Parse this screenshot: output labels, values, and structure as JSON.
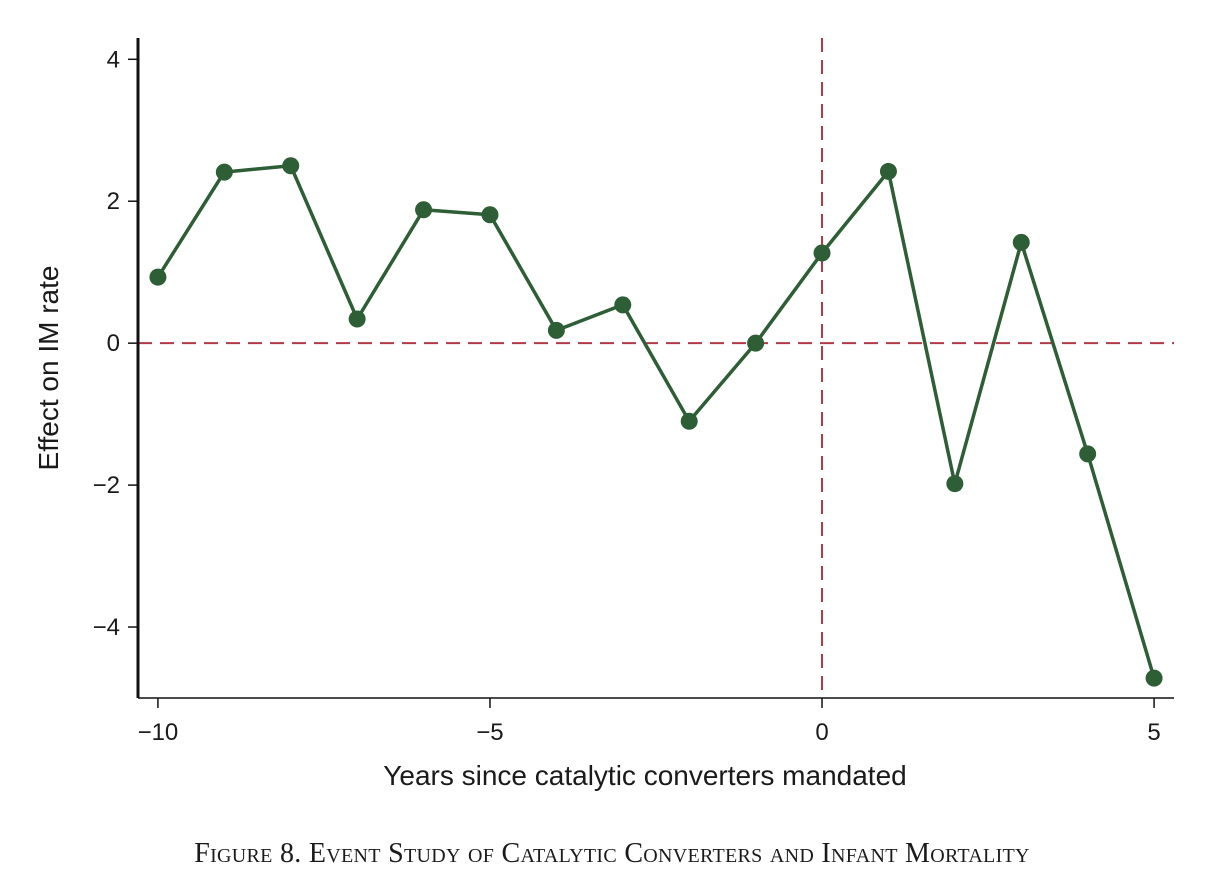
{
  "caption": "Figure 8. Event Study of Catalytic Converters and Infant Mortality",
  "chart_data": {
    "type": "line",
    "title": "",
    "xlabel": "Years since catalytic converters mandated",
    "ylabel": "Effect on IM rate",
    "x": [
      -10,
      -9,
      -8,
      -7,
      -6,
      -5,
      -4,
      -3,
      -2,
      -1,
      0,
      1,
      2,
      3,
      4,
      5
    ],
    "series": [
      {
        "values": [
          0.93,
          2.41,
          2.5,
          0.34,
          1.88,
          1.81,
          0.18,
          0.54,
          -1.1,
          0.0,
          1.27,
          2.42,
          -1.98,
          1.42,
          -1.56,
          -4.72
        ]
      }
    ],
    "xlim": [
      -10.3,
      5.3
    ],
    "ylim": [
      -5,
      4.3
    ],
    "xticks": [
      -10,
      -5,
      0,
      5
    ],
    "xtick_labels": [
      "−10",
      "−5",
      "0",
      "5"
    ],
    "yticks": [
      -4,
      -2,
      0,
      2,
      4
    ],
    "ytick_labels": [
      "−4",
      "−2",
      "0",
      "2",
      "4"
    ],
    "reference_lines": {
      "x": 0,
      "y": 0,
      "style": "dashed",
      "color": "#b03a48"
    },
    "series_color": "#2e5e36",
    "grid": false
  }
}
